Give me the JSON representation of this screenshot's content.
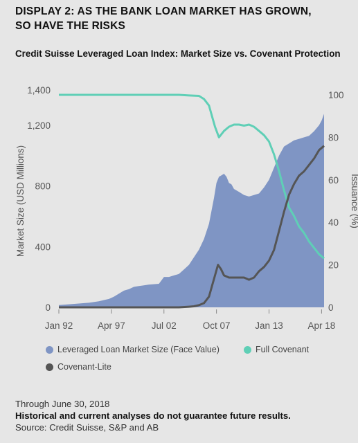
{
  "header": {
    "display_title_line1": "DISPLAY 2: AS THE BANK LOAN MARKET HAS GROWN,",
    "display_title_line2": "SO HAVE THE RISKS"
  },
  "chart_data": {
    "type": "area",
    "title": "Credit Suisse Leveraged Loan Index: Market Size vs. Covenant Protection",
    "ylabel": "Market Size (USD Millions)",
    "y2label": "Issuance (%)",
    "ylim": [
      0,
      1400
    ],
    "y2lim": [
      0,
      100
    ],
    "yticks": [
      0,
      400,
      800,
      1200
    ],
    "yticklabels": [
      "0",
      "400",
      "800",
      "1,200"
    ],
    "ytick_top_label": "1,400",
    "y2ticks": [
      0,
      20,
      40,
      60,
      80,
      100
    ],
    "xlim": [
      1992.0,
      2018.5
    ],
    "xticks": [
      1992.0,
      1997.25,
      2002.5,
      2007.75,
      2013.0,
      2018.25
    ],
    "xticklabels": [
      "Jan 92",
      "Apr 97",
      "Jul 02",
      "Oct 07",
      "Jan 13",
      "Apr 18"
    ],
    "grid": false,
    "legend_position": "bottom",
    "series": [
      {
        "name": "Leveraged Loan Market Size (Face Value)",
        "axis": "left",
        "kind": "area",
        "color": "#7f95c4",
        "x": [
          1992.0,
          1993.0,
          1994.0,
          1995.0,
          1996.0,
          1996.5,
          1997.0,
          1997.5,
          1998.0,
          1998.5,
          1999.0,
          1999.5,
          2000.0,
          2000.5,
          2001.0,
          2002.0,
          2002.5,
          2003.0,
          2003.5,
          2004.0,
          2004.5,
          2005.0,
          2005.5,
          2006.0,
          2006.5,
          2007.0,
          2007.5,
          2007.75,
          2008.0,
          2008.25,
          2008.5,
          2008.75,
          2009.0,
          2009.25,
          2009.5,
          2010.0,
          2010.5,
          2011.0,
          2011.5,
          2012.0,
          2012.5,
          2013.0,
          2013.5,
          2014.0,
          2014.5,
          2015.0,
          2015.5,
          2016.0,
          2016.5,
          2017.0,
          2017.5,
          2018.0,
          2018.25,
          2018.5
        ],
        "values": [
          15,
          20,
          25,
          30,
          40,
          48,
          55,
          70,
          90,
          110,
          120,
          135,
          140,
          145,
          150,
          155,
          200,
          200,
          210,
          220,
          250,
          280,
          330,
          380,
          450,
          550,
          720,
          820,
          860,
          870,
          880,
          860,
          820,
          810,
          780,
          760,
          740,
          730,
          740,
          750,
          790,
          840,
          920,
          1000,
          1060,
          1080,
          1100,
          1110,
          1120,
          1130,
          1160,
          1200,
          1230,
          1275
        ]
      },
      {
        "name": "Full Covenant",
        "axis": "right",
        "kind": "line",
        "color": "#5fcfb6",
        "x": [
          1992.0,
          1995.0,
          1998.0,
          2001.0,
          2003.0,
          2004.0,
          2005.0,
          2006.0,
          2006.5,
          2007.0,
          2007.3,
          2007.6,
          2008.0,
          2008.5,
          2009.0,
          2009.5,
          2010.0,
          2010.5,
          2011.0,
          2011.5,
          2012.0,
          2012.5,
          2013.0,
          2013.5,
          2014.0,
          2014.5,
          2015.0,
          2015.5,
          2016.0,
          2016.5,
          2017.0,
          2017.5,
          2018.0,
          2018.5
        ],
        "values": [
          100,
          100,
          100,
          100,
          100,
          100,
          99.7,
          99.5,
          98,
          95,
          90,
          85,
          80,
          83,
          85,
          86,
          86,
          85.5,
          86,
          85,
          83,
          81,
          78,
          72,
          64,
          55,
          47,
          43,
          38,
          35,
          31,
          28,
          25,
          23
        ]
      },
      {
        "name": "Covenant-Lite",
        "axis": "right",
        "kind": "line",
        "color": "#555555",
        "x": [
          1992.0,
          1995.0,
          1998.0,
          2001.0,
          2003.0,
          2004.0,
          2005.0,
          2005.5,
          2006.0,
          2006.5,
          2007.0,
          2007.3,
          2007.6,
          2007.9,
          2008.2,
          2008.5,
          2009.0,
          2009.5,
          2010.0,
          2010.5,
          2011.0,
          2011.5,
          2012.0,
          2012.5,
          2013.0,
          2013.5,
          2014.0,
          2014.5,
          2015.0,
          2015.5,
          2016.0,
          2016.5,
          2017.0,
          2017.5,
          2018.0,
          2018.5
        ],
        "values": [
          0,
          0,
          0,
          0,
          0,
          0,
          0.3,
          0.5,
          1,
          2,
          5,
          10,
          15,
          20,
          18,
          15,
          14,
          14,
          14,
          14,
          13,
          14,
          17,
          19,
          22,
          27,
          36,
          45,
          53,
          58,
          62,
          64,
          67,
          70,
          74,
          76
        ]
      }
    ]
  },
  "legend": {
    "items": [
      {
        "label": "Leveraged Loan Market Size (Face Value)",
        "color": "#7f95c4"
      },
      {
        "label": "Full Covenant",
        "color": "#5fcfb6"
      },
      {
        "label": "Covenant-Lite",
        "color": "#555555"
      }
    ]
  },
  "footer": {
    "date_note": "Through June 30, 2018",
    "disclaimer": "Historical and current analyses do not guarantee future results.",
    "source": "Source: Credit Suisse, S&P and AB"
  }
}
